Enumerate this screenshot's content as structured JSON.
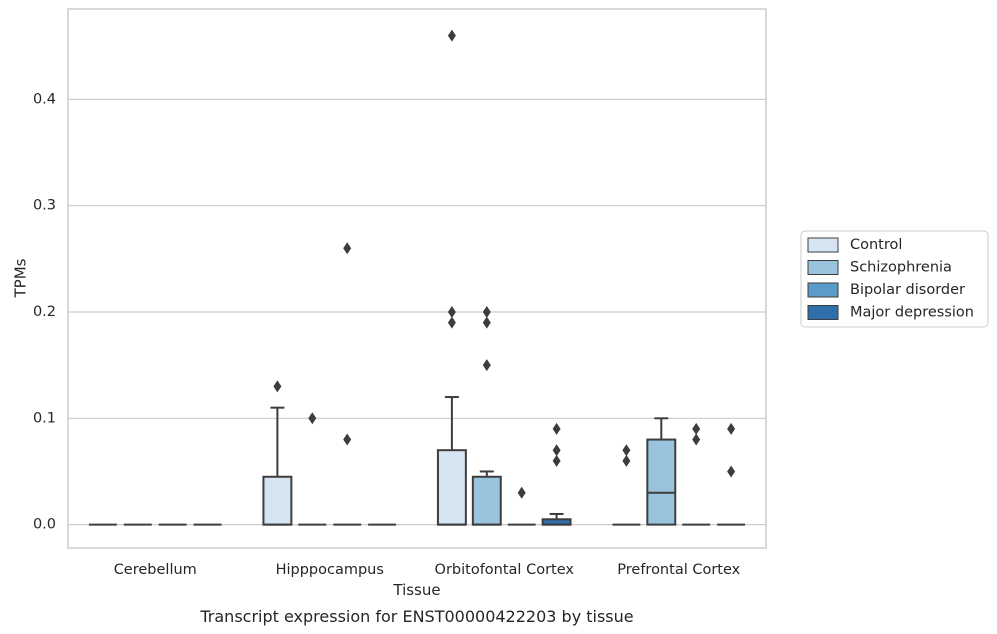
{
  "chart_data": {
    "type": "box",
    "title": "",
    "caption": "Transcript expression for ENST00000422203 by tissue",
    "xlabel": "Tissue",
    "ylabel": "TPMs",
    "ylim": [
      -0.022,
      0.485
    ],
    "yticks": [
      "0.0",
      "0.1",
      "0.2",
      "0.3",
      "0.4"
    ],
    "ytick_values": [
      0.0,
      0.1,
      0.2,
      0.3,
      0.4
    ],
    "grid": true,
    "legend_position": "right",
    "categories": [
      "Cerebellum",
      "Hipppocampus",
      "Orbitofontal Cortex",
      "Prefrontal Cortex"
    ],
    "series": [
      {
        "name": "Control",
        "color": "#d7e5f3",
        "boxes": [
          {
            "q1": 0,
            "median": 0,
            "q3": 0,
            "whisker_low": 0,
            "whisker_high": 0,
            "outliers": []
          },
          {
            "q1": 0,
            "median": 0,
            "q3": 0.045,
            "whisker_low": 0,
            "whisker_high": 0.11,
            "outliers": [
              0.13
            ]
          },
          {
            "q1": 0,
            "median": 0,
            "q3": 0.07,
            "whisker_low": 0,
            "whisker_high": 0.12,
            "outliers": [
              0.19,
              0.2,
              0.46
            ]
          },
          {
            "q1": 0,
            "median": 0,
            "q3": 0,
            "whisker_low": 0,
            "whisker_high": 0,
            "outliers": [
              0.06,
              0.07
            ]
          }
        ]
      },
      {
        "name": "Schizophrenia",
        "color": "#9ac4de",
        "boxes": [
          {
            "q1": 0,
            "median": 0,
            "q3": 0,
            "whisker_low": 0,
            "whisker_high": 0,
            "outliers": []
          },
          {
            "q1": 0,
            "median": 0,
            "q3": 0,
            "whisker_low": 0,
            "whisker_high": 0,
            "outliers": [
              0.1
            ]
          },
          {
            "q1": 0,
            "median": 0,
            "q3": 0.045,
            "whisker_low": 0,
            "whisker_high": 0.05,
            "outliers": [
              0.15,
              0.19,
              0.2
            ]
          },
          {
            "q1": 0,
            "median": 0.03,
            "q3": 0.08,
            "whisker_low": 0,
            "whisker_high": 0.1,
            "outliers": []
          }
        ]
      },
      {
        "name": "Bipolar disorder",
        "color": "#5b9bc9",
        "boxes": [
          {
            "q1": 0,
            "median": 0,
            "q3": 0,
            "whisker_low": 0,
            "whisker_high": 0,
            "outliers": []
          },
          {
            "q1": 0,
            "median": 0,
            "q3": 0,
            "whisker_low": 0,
            "whisker_high": 0,
            "outliers": [
              0.08,
              0.26
            ]
          },
          {
            "q1": 0,
            "median": 0,
            "q3": 0,
            "whisker_low": 0,
            "whisker_high": 0,
            "outliers": [
              0.03
            ]
          },
          {
            "q1": 0,
            "median": 0,
            "q3": 0,
            "whisker_low": 0,
            "whisker_high": 0,
            "outliers": [
              0.08,
              0.09
            ]
          }
        ]
      },
      {
        "name": "Major depression",
        "color": "#2f6fab",
        "boxes": [
          {
            "q1": 0,
            "median": 0,
            "q3": 0,
            "whisker_low": 0,
            "whisker_high": 0,
            "outliers": []
          },
          {
            "q1": 0,
            "median": 0,
            "q3": 0,
            "whisker_low": 0,
            "whisker_high": 0,
            "outliers": []
          },
          {
            "q1": 0,
            "median": 0,
            "q3": 0.005,
            "whisker_low": 0,
            "whisker_high": 0.01,
            "outliers": [
              0.06,
              0.07,
              0.09
            ]
          },
          {
            "q1": 0,
            "median": 0,
            "q3": 0,
            "whisker_low": 0,
            "whisker_high": 0,
            "outliers": [
              0.05,
              0.09
            ]
          }
        ]
      }
    ]
  }
}
